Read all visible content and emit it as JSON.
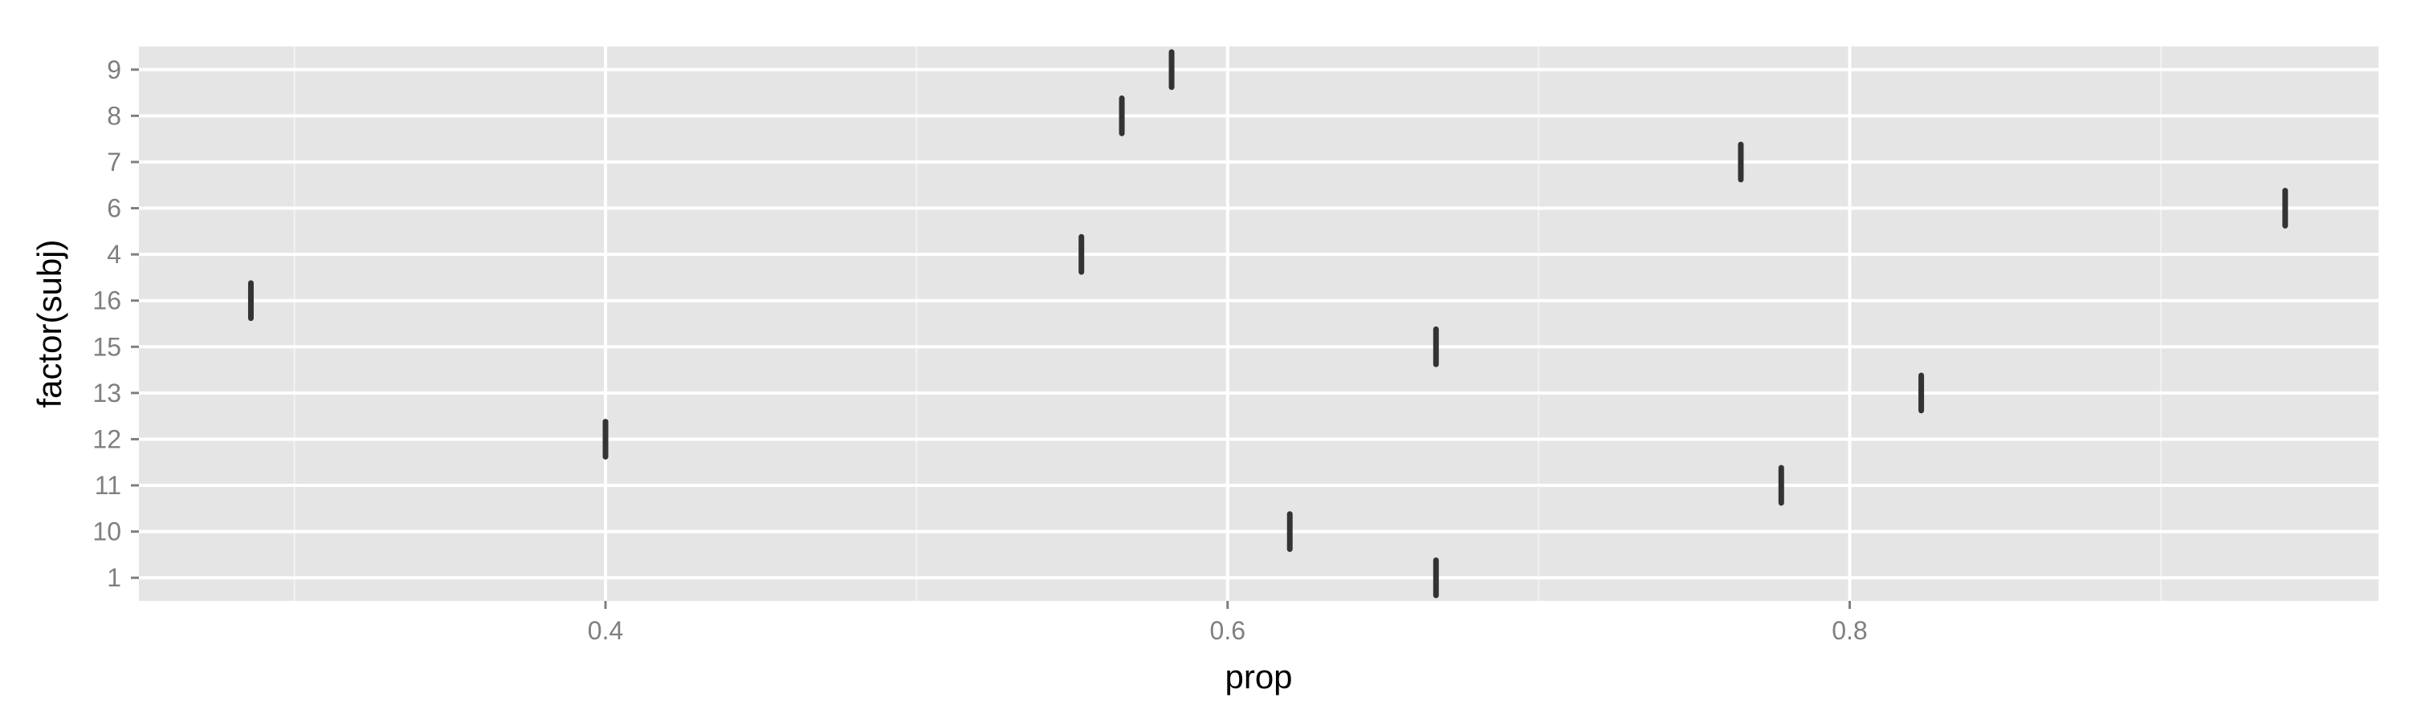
{
  "chart_data": {
    "type": "scatter",
    "marker": "vertical-line",
    "xlabel": "prop",
    "ylabel": "factor(subj)",
    "xlim": [
      0.25,
      0.97
    ],
    "x_ticks": [
      0.4,
      0.6,
      0.8
    ],
    "x_tick_labels": [
      "0.4",
      "0.6",
      "0.8"
    ],
    "categories": [
      "1",
      "10",
      "11",
      "12",
      "13",
      "15",
      "16",
      "4",
      "6",
      "7",
      "8",
      "9"
    ],
    "points": [
      {
        "subj": "1",
        "prop": 0.667
      },
      {
        "subj": "10",
        "prop": 0.62
      },
      {
        "subj": "11",
        "prop": 0.778
      },
      {
        "subj": "12",
        "prop": 0.4
      },
      {
        "subj": "13",
        "prop": 0.823
      },
      {
        "subj": "15",
        "prop": 0.667
      },
      {
        "subj": "16",
        "prop": 0.286
      },
      {
        "subj": "4",
        "prop": 0.553
      },
      {
        "subj": "6",
        "prop": 0.94
      },
      {
        "subj": "7",
        "prop": 0.765
      },
      {
        "subj": "8",
        "prop": 0.566
      },
      {
        "subj": "9",
        "prop": 0.582
      }
    ],
    "grid": true,
    "legend": "none",
    "colors": {
      "panel": "#e5e5e5",
      "grid_major": "#ffffff",
      "grid_minor": "#f2f2f2",
      "mark": "#333333",
      "tick_text": "#7f7f7f"
    }
  }
}
